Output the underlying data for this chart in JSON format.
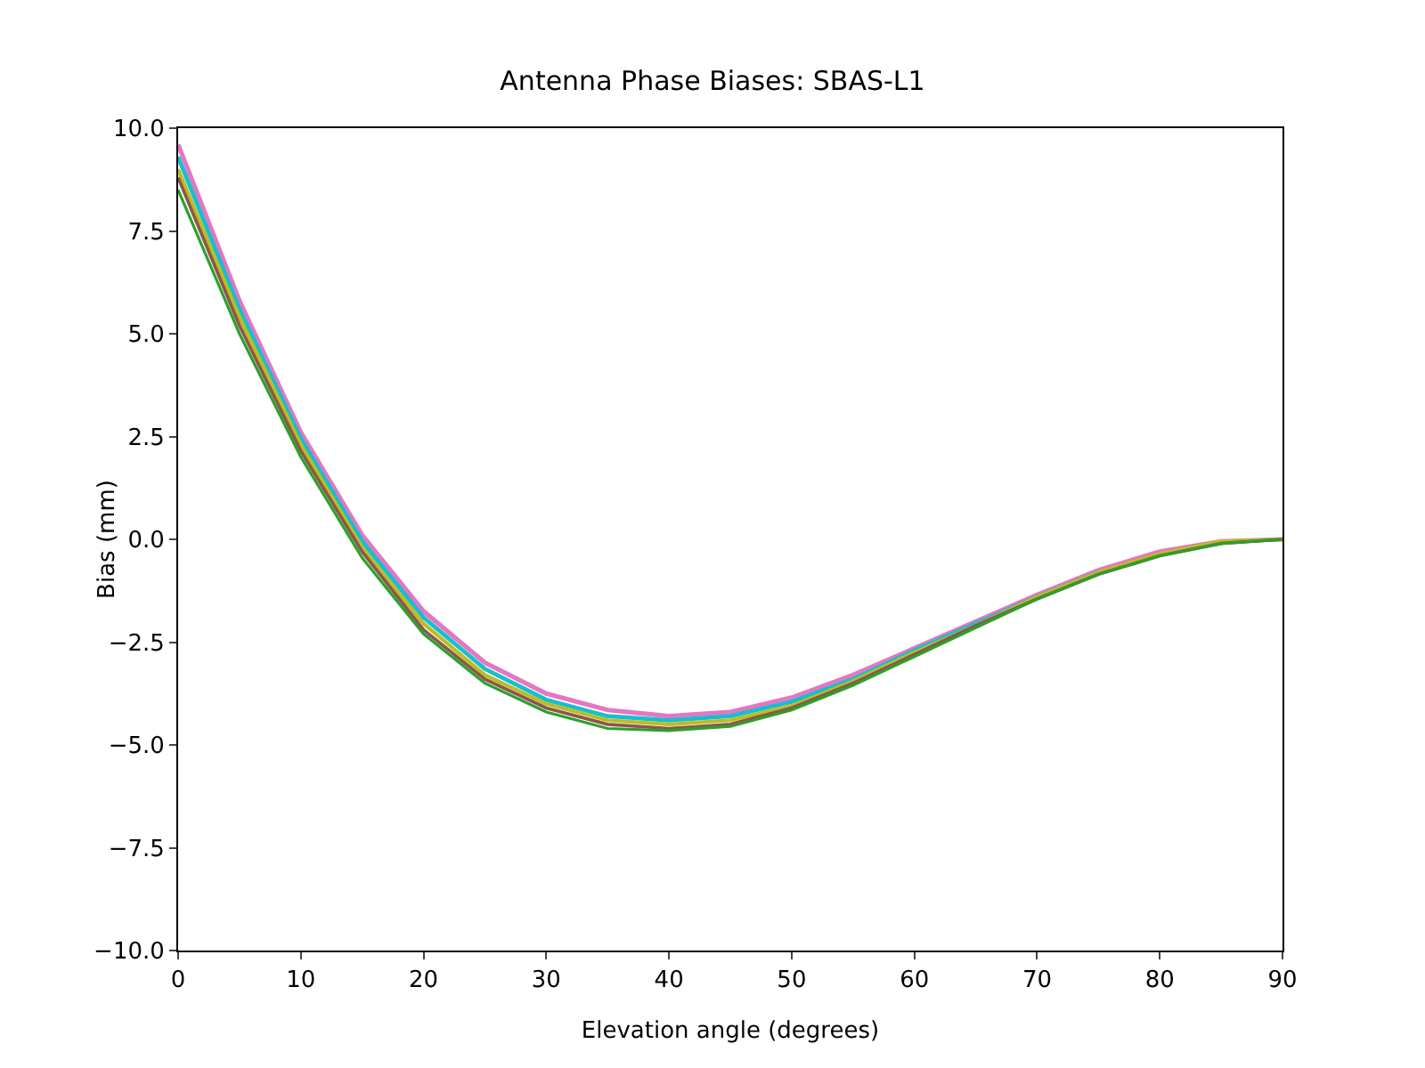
{
  "chart_data": {
    "type": "line",
    "title": "Antenna Phase Biases: SBAS-L1",
    "xlabel": "Elevation angle (degrees)",
    "ylabel": "Bias (mm)",
    "x": [
      0,
      5,
      10,
      15,
      20,
      25,
      30,
      35,
      40,
      45,
      50,
      55,
      60,
      65,
      70,
      75,
      80,
      85,
      90
    ],
    "series": [
      {
        "color": "#e377c2",
        "values": [
          9.6,
          5.8,
          2.6,
          0.1,
          -1.75,
          -3.0,
          -3.75,
          -4.15,
          -4.3,
          -4.2,
          -3.85,
          -3.3,
          -2.65,
          -2.0,
          -1.35,
          -0.75,
          -0.3,
          -0.05,
          0
        ]
      },
      {
        "color": "#17becf",
        "values": [
          9.3,
          5.6,
          2.45,
          -0.05,
          -1.9,
          -3.15,
          -3.9,
          -4.3,
          -4.4,
          -4.3,
          -3.95,
          -3.4,
          -2.7,
          -2.05,
          -1.4,
          -0.8,
          null,
          null,
          null
        ]
      },
      {
        "color": "#bcbd22",
        "values": [
          9.0,
          5.4,
          2.3,
          -0.2,
          -2.05,
          -3.3,
          -4.0,
          -4.4,
          -4.5,
          -4.4,
          -4.05,
          -3.45,
          -2.75,
          -2.1,
          -1.4,
          -0.8,
          -0.35,
          -0.05,
          0
        ]
      },
      {
        "color": "#8c564b",
        "values": [
          8.8,
          5.2,
          2.15,
          -0.3,
          -2.2,
          -3.4,
          -4.1,
          -4.5,
          -4.6,
          -4.5,
          -4.1,
          -3.5,
          -2.8,
          -2.1,
          -1.45,
          -0.85,
          -0.4,
          -0.1,
          0
        ]
      },
      {
        "color": "#2ca02c",
        "values": [
          8.5,
          5.0,
          2.0,
          -0.45,
          -2.3,
          -3.5,
          -4.2,
          -4.6,
          -4.65,
          -4.55,
          -4.15,
          -3.55,
          -2.85,
          -2.15,
          -1.45,
          -0.85,
          -0.4,
          -0.1,
          0
        ]
      }
    ],
    "xlim": [
      0,
      90
    ],
    "xticks": [
      0,
      10,
      20,
      30,
      40,
      50,
      60,
      70,
      80,
      90
    ],
    "ylim": [
      -10,
      10
    ],
    "yticks": [
      {
        "value": -10,
        "label": "−10.0"
      },
      {
        "value": -7.5,
        "label": "−7.5"
      },
      {
        "value": -5,
        "label": "−5.0"
      },
      {
        "value": -2.5,
        "label": "−2.5"
      },
      {
        "value": 0,
        "label": "0.0"
      },
      {
        "value": 2.5,
        "label": "2.5"
      },
      {
        "value": 5,
        "label": "5.0"
      },
      {
        "value": 7.5,
        "label": "7.5"
      },
      {
        "value": 10,
        "label": "10.0"
      }
    ],
    "grid": false,
    "marker": "none",
    "line_style": "solid"
  }
}
